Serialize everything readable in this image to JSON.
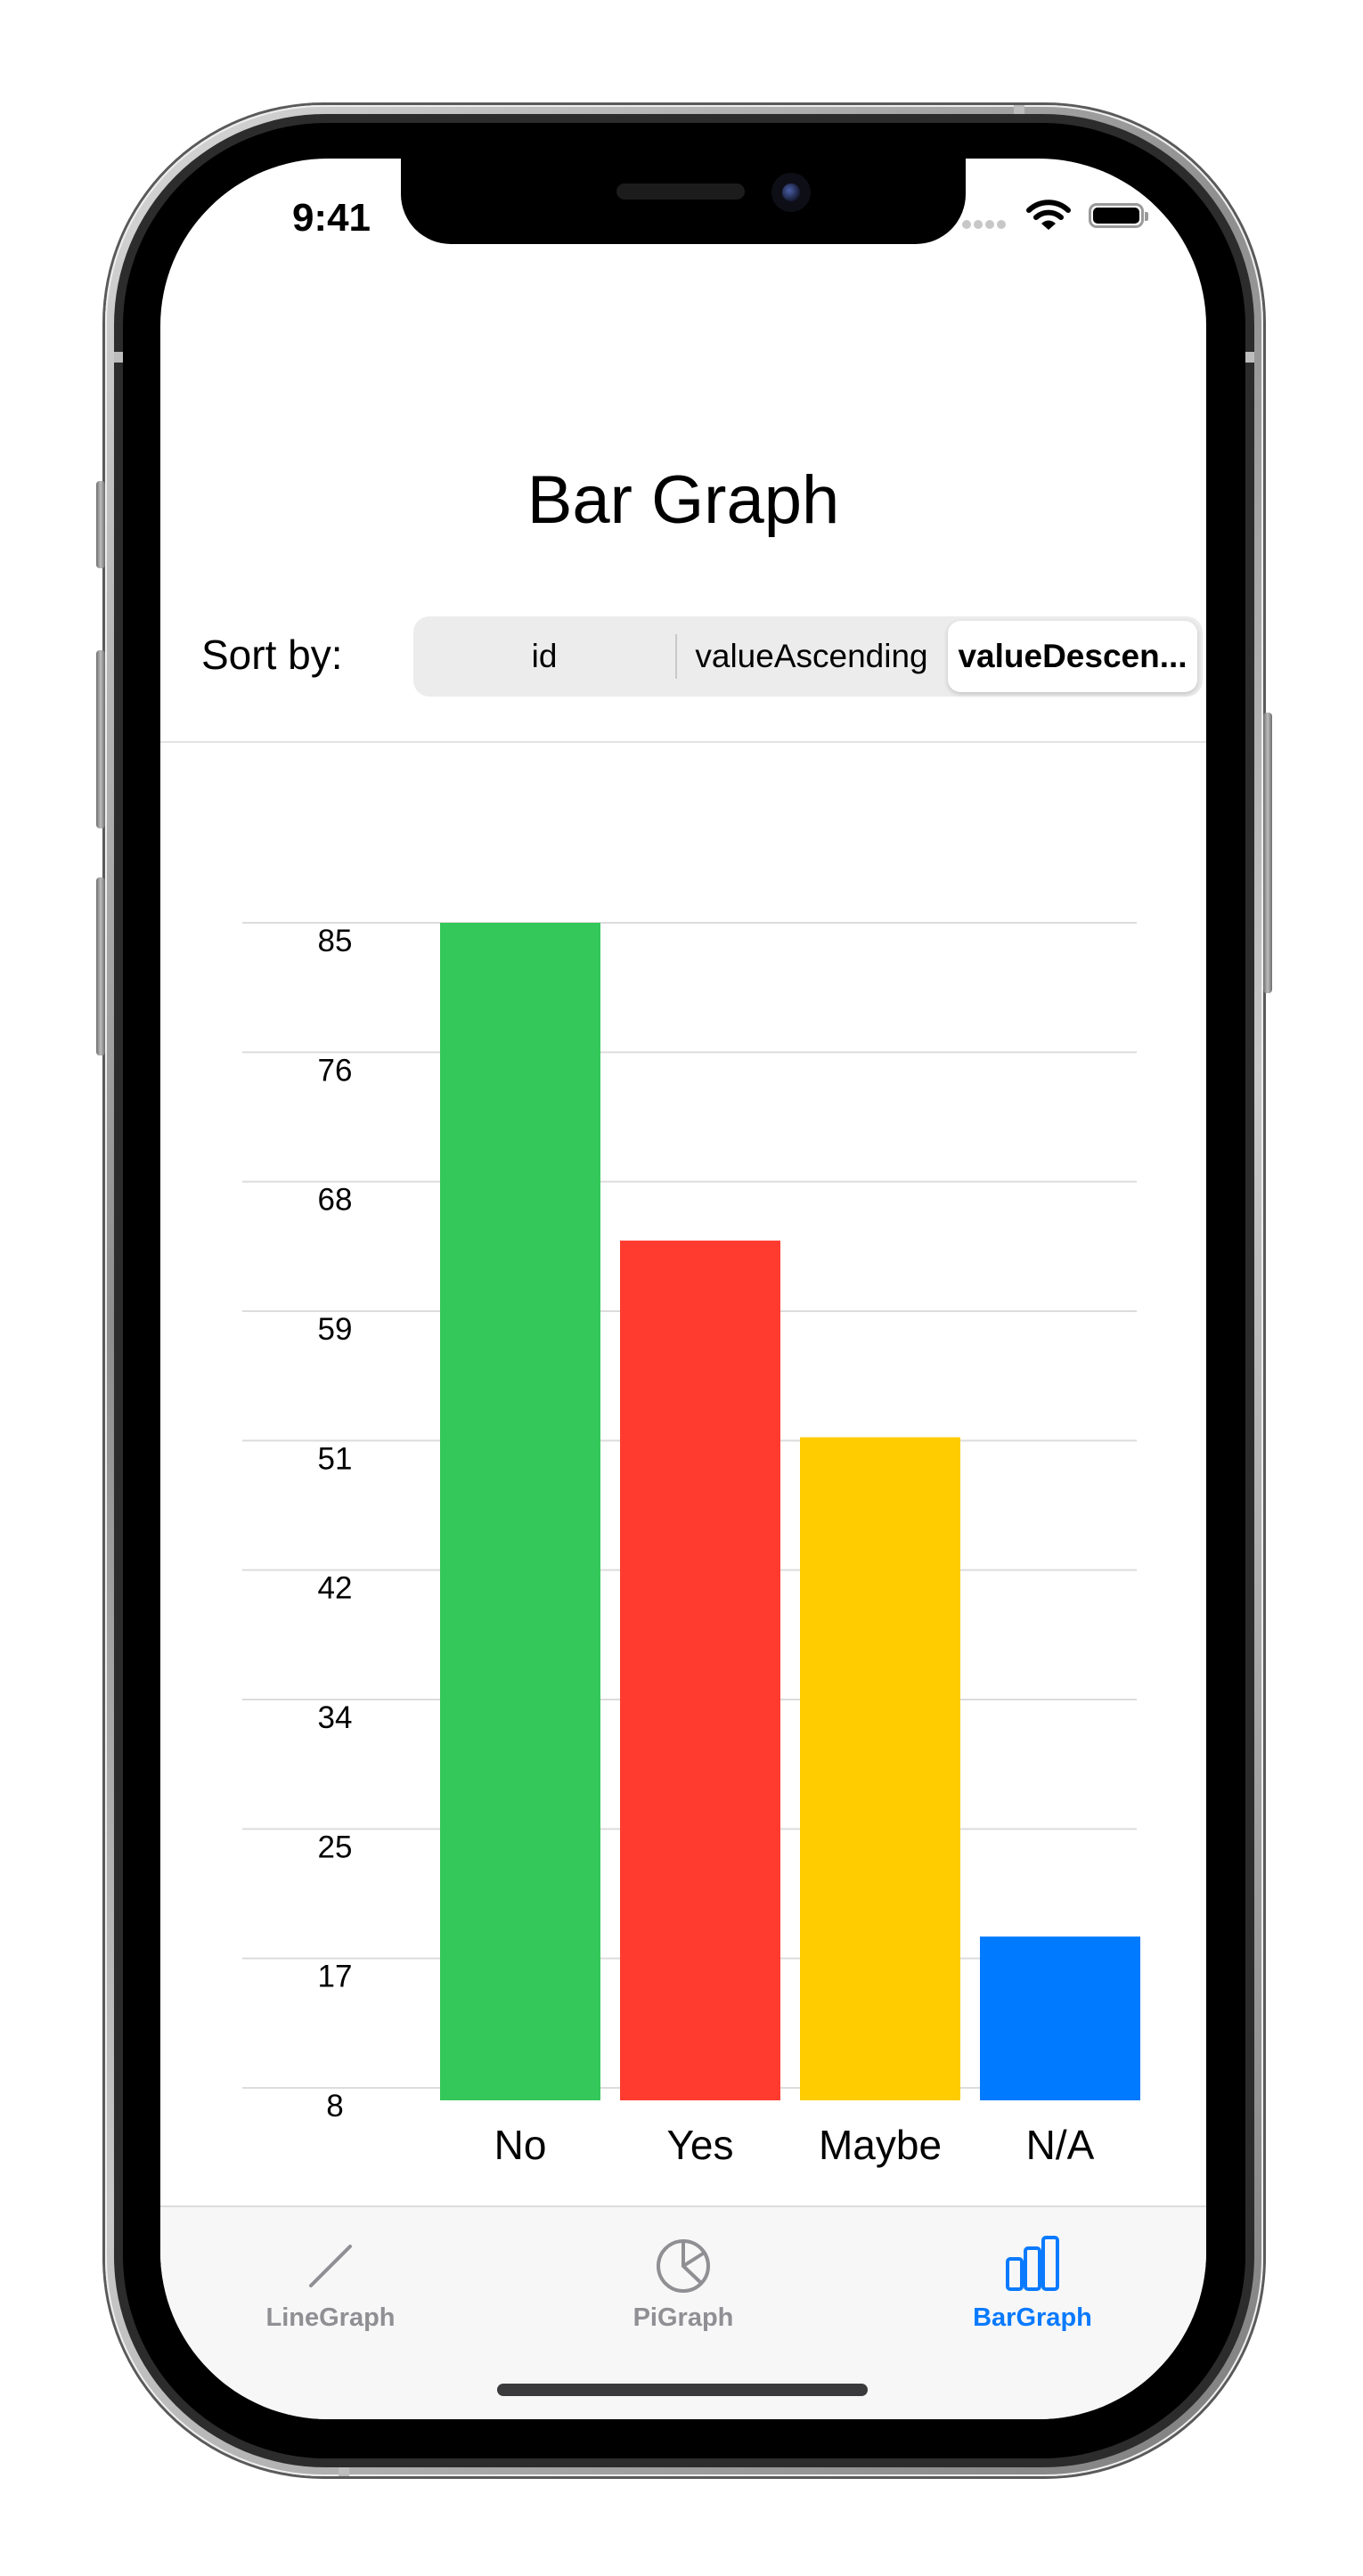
{
  "status_bar": {
    "time": "9:41",
    "icons": [
      "cellular-signal-icon",
      "wifi-icon",
      "battery-icon"
    ]
  },
  "page": {
    "title": "Bar Graph"
  },
  "sort": {
    "label": "Sort by:",
    "options": [
      "id",
      "valueAscending",
      "valueDescen..."
    ],
    "selected_index": 2
  },
  "chart_data": {
    "type": "bar",
    "categories": [
      "No",
      "Yes",
      "Maybe",
      "N/A"
    ],
    "values": [
      85,
      64,
      51,
      18
    ],
    "colors": [
      "#34c759",
      "#ff3b30",
      "#ffcc00",
      "#007aff"
    ],
    "ytick_labels": [
      "85",
      "76",
      "68",
      "59",
      "51",
      "42",
      "34",
      "25",
      "17",
      "8"
    ],
    "ylim": [
      8,
      85
    ],
    "grid": true,
    "title": "",
    "xlabel": "",
    "ylabel": ""
  },
  "tab_bar": {
    "tabs": [
      {
        "label": "LineGraph",
        "icon": "line-graph-icon",
        "active": false
      },
      {
        "label": "PiGraph",
        "icon": "pie-chart-icon",
        "active": false
      },
      {
        "label": "BarGraph",
        "icon": "bar-chart-icon",
        "active": true
      }
    ],
    "active_color": "#0a7aff",
    "inactive_color": "#8f8f94"
  }
}
